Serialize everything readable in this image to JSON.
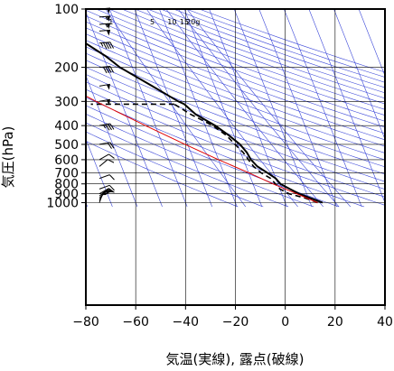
{
  "chart_data": {
    "type": "line",
    "subtype": "skew-T log-P",
    "xlabel": "気温(実線), 露点(破線)",
    "ylabel": "気圧(hPa)",
    "x_ticks": [
      -80,
      -60,
      -40,
      -20,
      0,
      20,
      40
    ],
    "y_ticks": [
      100,
      200,
      300,
      400,
      500,
      600,
      700,
      800,
      900,
      1000
    ],
    "xlim": [
      -80,
      40
    ],
    "ylim_pressure": [
      1050,
      100
    ],
    "y_scale": "log",
    "grid": true,
    "colors": {
      "temperature": "#000000",
      "dewpoint": "#000000",
      "parcel": "#e00000",
      "background_lines": "#3a46d8",
      "grid": "#000000"
    },
    "mixing_ratio_labels": [
      "1",
      "5",
      "10",
      "15",
      "20g"
    ],
    "mixing_ratio_values": [
      1,
      5,
      10,
      15,
      20
    ],
    "series": [
      {
        "style": "solid",
        "points": [
          {
            "p": 1000,
            "t": 15
          },
          {
            "p": 975,
            "t": 13
          },
          {
            "p": 950,
            "t": 11
          },
          {
            "p": 900,
            "t": 7
          },
          {
            "p": 850,
            "t": 4
          },
          {
            "p": 800,
            "t": 1
          },
          {
            "p": 750,
            "t": 0
          },
          {
            "p": 700,
            "t": -2.5
          },
          {
            "p": 650,
            "t": -5.5
          },
          {
            "p": 600,
            "t": -7
          },
          {
            "p": 550,
            "t": -7.5
          },
          {
            "p": 500,
            "t": -9
          },
          {
            "p": 450,
            "t": -12
          },
          {
            "p": 400,
            "t": -16
          },
          {
            "p": 350,
            "t": -22
          },
          {
            "p": 310,
            "t": -25
          },
          {
            "p": 300,
            "t": -27
          },
          {
            "p": 250,
            "t": -35
          },
          {
            "p": 200,
            "t": -45
          },
          {
            "p": 175,
            "t": -49
          },
          {
            "p": 150,
            "t": -55
          },
          {
            "p": 130,
            "t": -57
          },
          {
            "p": 120,
            "t": -56
          },
          {
            "p": 110,
            "t": -57
          },
          {
            "p": 100,
            "t": -57
          }
        ]
      },
      {
        "style": "dashed",
        "points": [
          {
            "p": 1000,
            "t": 13
          },
          {
            "p": 950,
            "t": 9
          },
          {
            "p": 900,
            "t": 3
          },
          {
            "p": 850,
            "t": 0
          },
          {
            "p": 800,
            "t": -1
          },
          {
            "p": 750,
            "t": -2
          },
          {
            "p": 700,
            "t": -5
          },
          {
            "p": 650,
            "t": -7
          },
          {
            "p": 600,
            "t": -8
          },
          {
            "p": 550,
            "t": -9
          },
          {
            "p": 500,
            "t": -11
          },
          {
            "p": 450,
            "t": -13
          },
          {
            "p": 400,
            "t": -17
          },
          {
            "p": 350,
            "t": -24
          },
          {
            "p": 310,
            "t": -29
          }
        ],
        "top_segment": {
          "p": 310,
          "t_from": -29,
          "t_to": -78
        }
      },
      {
        "style": "parcel",
        "points": [
          {
            "p": 1000,
            "t": 13
          },
          {
            "p": 900,
            "t": 6
          },
          {
            "p": 800,
            "t": -2
          },
          {
            "p": 700,
            "t": -10
          },
          {
            "p": 600,
            "t": -20
          },
          {
            "p": 500,
            "t": -31
          },
          {
            "p": 400,
            "t": -44
          },
          {
            "p": 300,
            "t": -60
          },
          {
            "p": 250,
            "t": -69
          },
          {
            "p": 200,
            "t": -79
          }
        ]
      }
    ],
    "wind_barbs": [
      {
        "p": 1000,
        "dir": 200,
        "speed_kt": 15
      },
      {
        "p": 975,
        "dir": 210,
        "speed_kt": 15
      },
      {
        "p": 950,
        "dir": 220,
        "speed_kt": 15
      },
      {
        "p": 925,
        "dir": 230,
        "speed_kt": 15
      },
      {
        "p": 900,
        "dir": 240,
        "speed_kt": 15
      },
      {
        "p": 850,
        "dir": 250,
        "speed_kt": 10
      },
      {
        "p": 750,
        "dir": 250,
        "speed_kt": 10
      },
      {
        "p": 650,
        "dir": 230,
        "speed_kt": 10
      },
      {
        "p": 600,
        "dir": 240,
        "speed_kt": 10
      },
      {
        "p": 500,
        "dir": 260,
        "speed_kt": 20
      },
      {
        "p": 400,
        "dir": 260,
        "speed_kt": 35
      },
      {
        "p": 300,
        "dir": 260,
        "speed_kt": 50
      },
      {
        "p": 250,
        "dir": 260,
        "speed_kt": 50
      },
      {
        "p": 200,
        "dir": 265,
        "speed_kt": 40
      },
      {
        "p": 150,
        "dir": 265,
        "speed_kt": 45
      },
      {
        "p": 130,
        "dir": 265,
        "speed_kt": 50
      },
      {
        "p": 120,
        "dir": 265,
        "speed_kt": 55
      },
      {
        "p": 110,
        "dir": 265,
        "speed_kt": 55
      },
      {
        "p": 100,
        "dir": 265,
        "speed_kt": 50
      }
    ]
  }
}
